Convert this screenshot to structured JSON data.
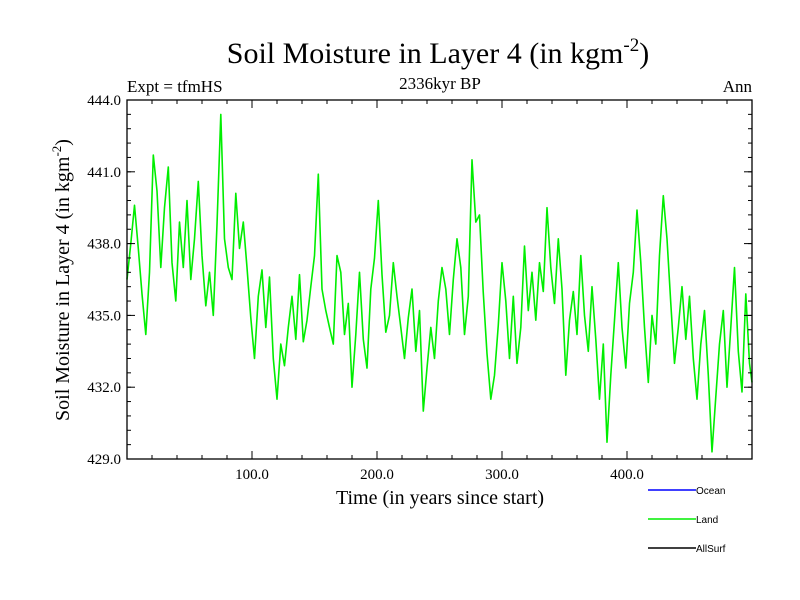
{
  "chart_data": {
    "type": "line",
    "title": "Soil Moisture in Layer 4 (in kgm",
    "title_sup": "-2",
    "title_end": ")",
    "subtitle": "2336kyr BP",
    "left_label": "Expt = tfmHS",
    "right_label": "Ann",
    "xlabel": "Time (in years since start)",
    "ylabel": "Soil Moisture in Layer 4 (in kgm",
    "ylabel_sup": "-2",
    "ylabel_end": ")",
    "xlim": [
      0,
      500
    ],
    "ylim": [
      429.0,
      444.0
    ],
    "xticks": [
      {
        "value": 100,
        "label": "100.0"
      },
      {
        "value": 200,
        "label": "200.0"
      },
      {
        "value": 300,
        "label": "300.0"
      },
      {
        "value": 400,
        "label": "400.0"
      }
    ],
    "yticks": [
      {
        "value": 429.0,
        "label": "429.0"
      },
      {
        "value": 432.0,
        "label": "432.0"
      },
      {
        "value": 435.0,
        "label": "435.0"
      },
      {
        "value": 438.0,
        "label": "438.0"
      },
      {
        "value": 441.0,
        "label": "441.0"
      },
      {
        "value": 444.0,
        "label": "444.0"
      }
    ],
    "legend": [
      {
        "name": "Ocean",
        "color": "#0000ff"
      },
      {
        "name": "Land",
        "color": "#00ee00"
      },
      {
        "name": "AllSurf",
        "color": "#000000"
      }
    ],
    "series": [
      {
        "name": "Land",
        "color": "#00ee00",
        "x": [
          0,
          3,
          6,
          9,
          12,
          15,
          18,
          21,
          24,
          27,
          30,
          33,
          36,
          39,
          42,
          45,
          48,
          51,
          54,
          57,
          60,
          63,
          66,
          69,
          72,
          75,
          78,
          81,
          84,
          87,
          90,
          93,
          96,
          99,
          102,
          105,
          108,
          111,
          114,
          117,
          120,
          123,
          126,
          129,
          132,
          135,
          138,
          141,
          144,
          147,
          150,
          153,
          156,
          159,
          162,
          165,
          168,
          171,
          174,
          177,
          180,
          183,
          186,
          189,
          192,
          195,
          198,
          201,
          204,
          207,
          210,
          213,
          216,
          219,
          222,
          225,
          228,
          231,
          234,
          237,
          240,
          243,
          246,
          249,
          252,
          255,
          258,
          261,
          264,
          267,
          270,
          273,
          276,
          279,
          282,
          285,
          288,
          291,
          294,
          297,
          300,
          303,
          306,
          309,
          312,
          315,
          318,
          321,
          324,
          327,
          330,
          333,
          336,
          339,
          342,
          345,
          348,
          351,
          354,
          357,
          360,
          363,
          366,
          369,
          372,
          375,
          378,
          381,
          384,
          387,
          390,
          393,
          396,
          399,
          402,
          405,
          408,
          411,
          414,
          417,
          420,
          423,
          426,
          429,
          432,
          435,
          438,
          441,
          444,
          447,
          450,
          453,
          456,
          459,
          462,
          465,
          468,
          471,
          474,
          477,
          480,
          483,
          486,
          489,
          492,
          495,
          498,
          500
        ],
        "values": [
          436.5,
          438.0,
          439.6,
          437.8,
          435.9,
          434.2,
          436.8,
          441.7,
          440.2,
          437.0,
          439.5,
          441.2,
          437.2,
          435.6,
          438.9,
          437.0,
          439.8,
          436.5,
          438.2,
          440.6,
          437.5,
          435.4,
          436.8,
          435.0,
          438.8,
          443.4,
          438.2,
          437.0,
          436.5,
          440.1,
          437.8,
          438.9,
          437.0,
          434.9,
          433.2,
          435.8,
          436.9,
          434.5,
          436.6,
          433.2,
          431.5,
          433.8,
          432.9,
          434.5,
          435.8,
          434.0,
          436.7,
          433.9,
          434.8,
          436.2,
          437.5,
          440.9,
          436.1,
          435.2,
          434.5,
          433.8,
          437.5,
          436.8,
          434.2,
          435.5,
          432.0,
          434.2,
          436.8,
          434.0,
          432.8,
          436.1,
          437.4,
          439.8,
          436.7,
          434.3,
          435.0,
          437.2,
          435.8,
          434.5,
          433.2,
          434.9,
          436.1,
          433.5,
          435.2,
          431.0,
          432.8,
          434.5,
          433.2,
          435.6,
          437.0,
          436.1,
          434.2,
          436.5,
          438.2,
          437.0,
          434.2,
          435.8,
          441.5,
          438.9,
          439.2,
          436.0,
          433.4,
          431.5,
          432.5,
          434.6,
          437.2,
          435.6,
          433.2,
          435.8,
          433.0,
          434.5,
          437.9,
          435.2,
          436.8,
          434.8,
          437.2,
          436.0,
          439.5,
          437.0,
          435.5,
          438.2,
          436.1,
          432.5,
          434.8,
          436.0,
          434.2,
          437.5,
          435.0,
          433.5,
          436.2,
          434.0,
          431.5,
          433.8,
          429.7,
          432.5,
          434.8,
          437.2,
          434.5,
          432.8,
          435.5,
          436.8,
          439.4,
          437.2,
          434.5,
          432.2,
          435.0,
          433.8,
          437.5,
          440.0,
          438.2,
          435.5,
          433.0,
          434.5,
          436.2,
          434.0,
          435.8,
          433.2,
          431.5,
          433.8,
          435.2,
          432.5,
          429.3,
          431.6,
          433.8,
          435.2,
          432.0,
          434.5,
          437.0,
          433.5,
          431.8,
          435.9,
          433.0,
          432.2
        ]
      }
    ]
  }
}
